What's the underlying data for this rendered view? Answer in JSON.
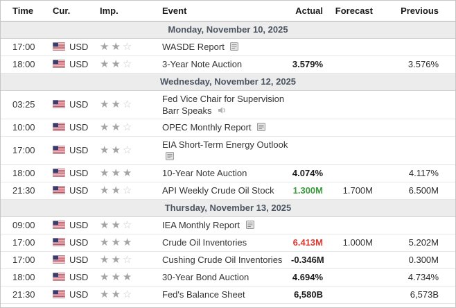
{
  "calendar": {
    "columns": [
      "Time",
      "Cur.",
      "Imp.",
      "Event",
      "Actual",
      "Forecast",
      "Previous"
    ],
    "colors": {
      "actual_default": "#1b1b1b",
      "actual_better": "#3c9b3c",
      "actual_worse": "#dd3931",
      "day_row_bg": "#ececec",
      "day_row_text": "#4b5561",
      "star_filled": "#a4a4a4",
      "star_empty": "#c9c9c9"
    },
    "icons": {
      "flag": "us-flag-icon",
      "report": "report-icon",
      "speaker": "speaker-icon",
      "importance_filled": "star-filled-icon",
      "importance_empty": "star-empty-icon"
    },
    "days": [
      {
        "date": "Monday, November 10, 2025",
        "events": [
          {
            "time": "17:00",
            "currency": "USD",
            "importance": 2,
            "event": "WASDE Report",
            "icon": "report",
            "actual": "",
            "actual_color": "",
            "forecast": "",
            "previous": ""
          },
          {
            "time": "18:00",
            "currency": "USD",
            "importance": 2,
            "event": "3-Year Note Auction",
            "icon": "",
            "actual": "3.579%",
            "actual_color": "",
            "forecast": "",
            "previous": "3.576%"
          }
        ]
      },
      {
        "date": "Wednesday, November 12, 2025",
        "events": [
          {
            "time": "03:25",
            "currency": "USD",
            "importance": 2,
            "event": "Fed Vice Chair for Supervision Barr Speaks",
            "icon": "speaker",
            "actual": "",
            "actual_color": "",
            "forecast": "",
            "previous": ""
          },
          {
            "time": "10:00",
            "currency": "USD",
            "importance": 2,
            "event": "OPEC Monthly Report",
            "icon": "report",
            "actual": "",
            "actual_color": "",
            "forecast": "",
            "previous": ""
          },
          {
            "time": "17:00",
            "currency": "USD",
            "importance": 2,
            "event": "EIA Short-Term Energy Outlook",
            "icon": "report",
            "actual": "",
            "actual_color": "",
            "forecast": "",
            "previous": ""
          },
          {
            "time": "18:00",
            "currency": "USD",
            "importance": 3,
            "event": "10-Year Note Auction",
            "icon": "",
            "actual": "4.074%",
            "actual_color": "",
            "forecast": "",
            "previous": "4.117%"
          },
          {
            "time": "21:30",
            "currency": "USD",
            "importance": 2,
            "event": "API Weekly Crude Oil Stock",
            "icon": "",
            "actual": "1.300M",
            "actual_color": "green",
            "forecast": "1.700M",
            "previous": "6.500M"
          }
        ]
      },
      {
        "date": "Thursday, November 13, 2025",
        "events": [
          {
            "time": "09:00",
            "currency": "USD",
            "importance": 2,
            "event": "IEA Monthly Report",
            "icon": "report",
            "actual": "",
            "actual_color": "",
            "forecast": "",
            "previous": ""
          },
          {
            "time": "17:00",
            "currency": "USD",
            "importance": 3,
            "event": "Crude Oil Inventories",
            "icon": "",
            "actual": "6.413M",
            "actual_color": "red",
            "forecast": "1.000M",
            "previous": "5.202M"
          },
          {
            "time": "17:00",
            "currency": "USD",
            "importance": 2,
            "event": "Cushing Crude Oil Inventories",
            "icon": "",
            "actual": "-0.346M",
            "actual_color": "",
            "forecast": "",
            "previous": "0.300M"
          },
          {
            "time": "18:00",
            "currency": "USD",
            "importance": 3,
            "event": "30-Year Bond Auction",
            "icon": "",
            "actual": "4.694%",
            "actual_color": "",
            "forecast": "",
            "previous": "4.734%"
          },
          {
            "time": "21:30",
            "currency": "USD",
            "importance": 2,
            "event": "Fed's Balance Sheet",
            "icon": "",
            "actual": "6,580B",
            "actual_color": "",
            "forecast": "",
            "previous": "6,573B"
          }
        ]
      }
    ]
  }
}
